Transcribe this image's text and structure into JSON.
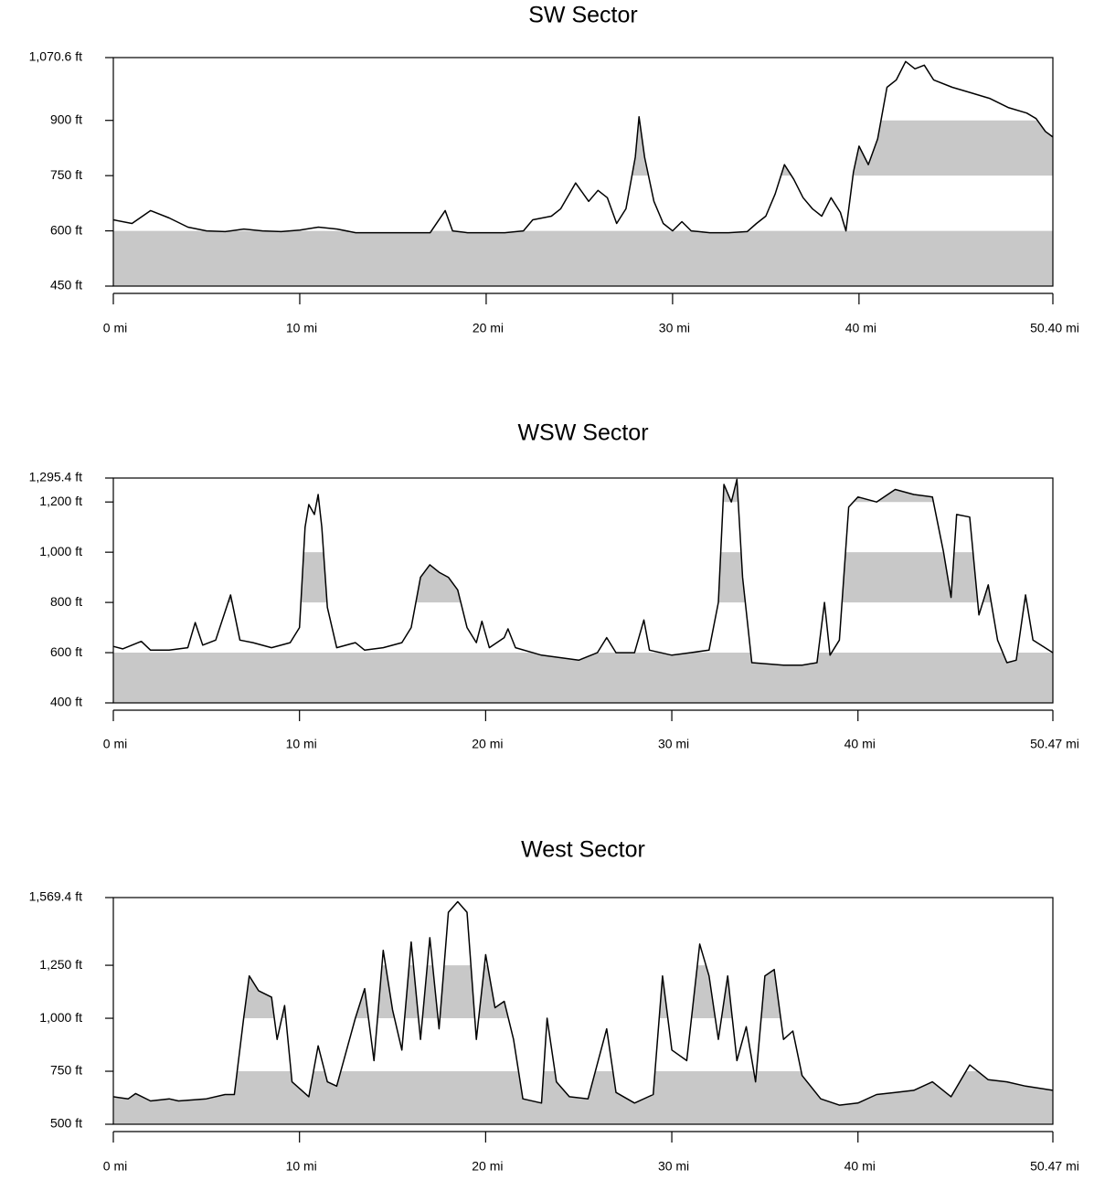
{
  "chart_data": [
    {
      "type": "line",
      "title": "SW Sector",
      "color": "#000000",
      "band_color": "#c8c8c8",
      "shade_alternate_bands": true,
      "x": [
        0,
        1,
        2,
        3,
        4,
        5,
        6,
        7,
        8,
        9,
        10,
        11,
        12,
        13,
        14,
        15,
        16,
        17,
        17.8,
        18.2,
        19,
        20,
        21,
        22,
        22.5,
        23.5,
        24,
        24.8,
        25.5,
        26,
        26.5,
        27,
        27.5,
        28,
        28.2,
        28.5,
        29,
        29.5,
        30,
        30.5,
        31,
        32,
        33,
        34,
        34.5,
        35,
        35.5,
        36,
        36.5,
        37,
        37.5,
        38,
        38.5,
        39,
        39.3,
        39.7,
        40,
        40.5,
        41,
        41.5,
        42,
        42.5,
        43,
        43.5,
        44,
        45,
        46,
        47,
        48,
        49,
        49.5,
        50,
        50.4
      ],
      "values": [
        630,
        620,
        655,
        635,
        610,
        600,
        598,
        605,
        600,
        598,
        602,
        610,
        605,
        595,
        595,
        595,
        595,
        595,
        655,
        600,
        595,
        595,
        595,
        600,
        630,
        640,
        660,
        730,
        680,
        710,
        690,
        620,
        660,
        800,
        910,
        800,
        680,
        620,
        600,
        625,
        600,
        595,
        595,
        598,
        620,
        640,
        700,
        780,
        740,
        690,
        660,
        640,
        690,
        650,
        600,
        760,
        830,
        780,
        850,
        990,
        1010,
        1060,
        1040,
        1050,
        1010,
        990,
        975,
        960,
        935,
        920,
        905,
        870,
        855
      ],
      "xlim": [
        0,
        50.4
      ],
      "xticks": [
        {
          "value": 0,
          "label": "0 mi"
        },
        {
          "value": 10,
          "label": "10 mi"
        },
        {
          "value": 20,
          "label": "20 mi"
        },
        {
          "value": 30,
          "label": "30 mi"
        },
        {
          "value": 40,
          "label": "40 mi"
        },
        {
          "value": 50.4,
          "label": "50.40 mi"
        }
      ],
      "ylim": [
        450,
        1070.6
      ],
      "yticks": [
        {
          "value": 450,
          "label": "450 ft"
        },
        {
          "value": 600,
          "label": "600 ft"
        },
        {
          "value": 750,
          "label": "750 ft"
        },
        {
          "value": 900,
          "label": "900 ft"
        },
        {
          "value": 1070.6,
          "label": "1,070.6 ft"
        }
      ]
    },
    {
      "type": "line",
      "title": "WSW Sector",
      "color": "#000000",
      "band_color": "#c8c8c8",
      "shade_alternate_bands": true,
      "x": [
        0,
        0.5,
        1.5,
        2,
        3,
        4,
        4.4,
        4.8,
        5.5,
        6.3,
        6.8,
        7.5,
        8.5,
        9.5,
        10,
        10.3,
        10.5,
        10.8,
        11,
        11.2,
        11.5,
        12,
        13,
        13.5,
        14.5,
        15.5,
        16,
        16.5,
        17,
        17.5,
        18,
        18.5,
        19,
        19.5,
        19.8,
        20.2,
        21,
        21.2,
        21.6,
        23,
        25,
        26,
        26.5,
        27,
        28,
        28.5,
        28.8,
        30,
        31,
        32,
        32.5,
        32.8,
        33.2,
        33.5,
        33.8,
        34.3,
        36,
        37,
        37.8,
        38.2,
        38.5,
        39,
        39.5,
        40,
        41,
        42,
        43,
        44,
        44.6,
        45,
        45.3,
        46,
        46.5,
        47,
        47.5,
        48,
        48.5,
        49,
        49.4,
        50.47
      ],
      "values": [
        625,
        615,
        645,
        610,
        610,
        620,
        720,
        630,
        650,
        830,
        650,
        640,
        620,
        640,
        700,
        1100,
        1190,
        1150,
        1230,
        1100,
        780,
        620,
        640,
        610,
        620,
        640,
        700,
        900,
        950,
        920,
        900,
        850,
        700,
        640,
        725,
        620,
        660,
        695,
        620,
        590,
        570,
        600,
        660,
        600,
        600,
        730,
        610,
        590,
        600,
        610,
        800,
        1270,
        1200,
        1290,
        900,
        560,
        550,
        550,
        560,
        800,
        590,
        650,
        1180,
        1220,
        1200,
        1250,
        1230,
        1220,
        1000,
        820,
        1150,
        1140,
        750,
        870,
        650,
        560,
        570,
        830,
        650,
        600
      ],
      "xlim": [
        0,
        50.47
      ],
      "xticks": [
        {
          "value": 0,
          "label": "0 mi"
        },
        {
          "value": 10,
          "label": "10 mi"
        },
        {
          "value": 20,
          "label": "20 mi"
        },
        {
          "value": 30,
          "label": "30 mi"
        },
        {
          "value": 40,
          "label": "40 mi"
        },
        {
          "value": 50.47,
          "label": "50.47 mi"
        }
      ],
      "ylim": [
        400,
        1295.4
      ],
      "yticks": [
        {
          "value": 400,
          "label": "400 ft"
        },
        {
          "value": 600,
          "label": "600 ft"
        },
        {
          "value": 800,
          "label": "800 ft"
        },
        {
          "value": 1000,
          "label": "1,000 ft"
        },
        {
          "value": 1200,
          "label": "1,200 ft"
        },
        {
          "value": 1295.4,
          "label": "1,295.4 ft"
        }
      ]
    },
    {
      "type": "line",
      "title": "West Sector",
      "color": "#000000",
      "band_color": "#c8c8c8",
      "shade_alternate_bands": true,
      "x": [
        0,
        0.8,
        1.2,
        2,
        3,
        3.5,
        5,
        6,
        6.5,
        7,
        7.3,
        7.8,
        8.5,
        8.8,
        9.2,
        9.6,
        10.5,
        11,
        11.5,
        12,
        13,
        13.5,
        14,
        14.5,
        15,
        15.5,
        16,
        16.5,
        17,
        17.5,
        18,
        18.5,
        19,
        19.5,
        20,
        20.5,
        21,
        21.5,
        22,
        23,
        23.3,
        23.8,
        24.5,
        25.5,
        26.5,
        27,
        28,
        29,
        29.5,
        30,
        30.8,
        31.5,
        32,
        32.5,
        33,
        33.5,
        34,
        34.5,
        35,
        35.5,
        36,
        36.5,
        37,
        38,
        39,
        40,
        41,
        42,
        43,
        44,
        45,
        46,
        47,
        48,
        49,
        50.47
      ],
      "values": [
        630,
        620,
        645,
        610,
        620,
        610,
        620,
        640,
        640,
        1000,
        1200,
        1130,
        1100,
        900,
        1060,
        700,
        630,
        870,
        700,
        680,
        1000,
        1140,
        800,
        1320,
        1040,
        850,
        1360,
        900,
        1380,
        950,
        1500,
        1550,
        1500,
        900,
        1300,
        1050,
        1080,
        900,
        620,
        600,
        1000,
        700,
        630,
        620,
        950,
        650,
        600,
        640,
        1200,
        850,
        800,
        1350,
        1200,
        900,
        1200,
        800,
        960,
        700,
        1200,
        1230,
        900,
        940,
        730,
        620,
        590,
        600,
        640,
        650,
        660,
        700,
        630,
        780,
        710,
        700,
        680,
        660
      ],
      "xlim": [
        0,
        50.47
      ],
      "xticks": [
        {
          "value": 0,
          "label": "0 mi"
        },
        {
          "value": 10,
          "label": "10 mi"
        },
        {
          "value": 20,
          "label": "20 mi"
        },
        {
          "value": 30,
          "label": "30 mi"
        },
        {
          "value": 40,
          "label": "40 mi"
        },
        {
          "value": 50.47,
          "label": "50.47 mi"
        }
      ],
      "ylim": [
        500,
        1569.4
      ],
      "yticks": [
        {
          "value": 500,
          "label": "500 ft"
        },
        {
          "value": 750,
          "label": "750 ft"
        },
        {
          "value": 1000,
          "label": "1,000 ft"
        },
        {
          "value": 1250,
          "label": "1,250 ft"
        },
        {
          "value": 1569.4,
          "label": "1,569.4 ft"
        }
      ]
    }
  ]
}
